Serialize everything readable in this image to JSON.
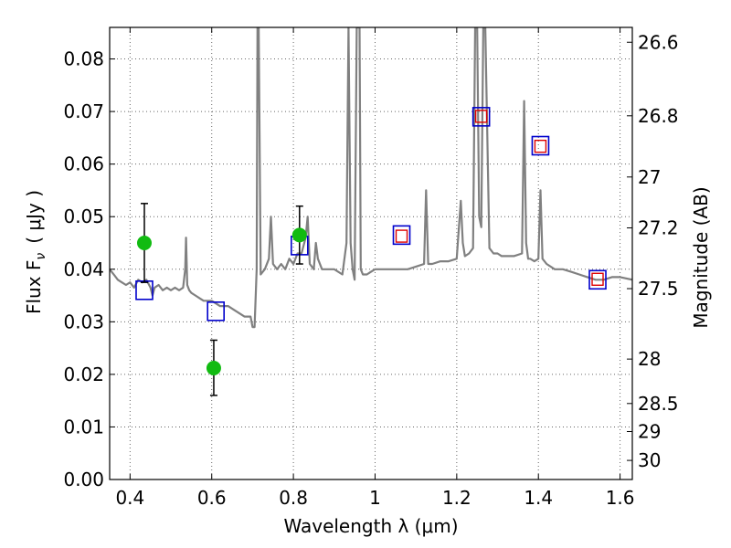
{
  "chart_data": {
    "type": "line",
    "xlabel": "Wavelength  λ (μm)",
    "ylabel": "Flux  F",
    "ylabel_sub": "ν",
    "ylabel_unit": "( μJy )",
    "y2label": "Magnitude (AB)",
    "xlim": [
      0.35,
      1.63
    ],
    "ylim": [
      0.0,
      0.086
    ],
    "grid": true,
    "x_ticks": [
      0.4,
      0.6,
      0.8,
      1.0,
      1.2,
      1.4,
      1.6
    ],
    "x_tick_labels": [
      "0.4",
      "0.6",
      "0.8",
      "1",
      "1.2",
      "1.4",
      "1.6"
    ],
    "y_ticks": [
      0.0,
      0.01,
      0.02,
      0.03,
      0.04,
      0.05,
      0.06,
      0.07,
      0.08
    ],
    "y_tick_labels": [
      "0.00",
      "0.01",
      "0.02",
      "0.03",
      "0.04",
      "0.05",
      "0.06",
      "0.07",
      "0.08"
    ],
    "mag_ticks": [
      26.6,
      26.8,
      27.0,
      27.2,
      27.5,
      28.0,
      28.5,
      29.0,
      30.0
    ],
    "mag_tick_labels": [
      "26.6",
      "26.8",
      "27",
      "27.2",
      "27.5",
      "28",
      "28.5",
      "29",
      "30"
    ],
    "colors": {
      "model": "#808080",
      "blue_squares": "#0000cc",
      "red_squares": "#dd0000",
      "observed": "#11bb11",
      "errorbar": "#000000"
    },
    "series": [
      {
        "kind": "model_spectrum",
        "x": [
          0.35,
          0.36,
          0.37,
          0.38,
          0.39,
          0.4,
          0.41,
          0.42,
          0.43,
          0.44,
          0.45,
          0.455,
          0.46,
          0.47,
          0.48,
          0.49,
          0.5,
          0.51,
          0.52,
          0.53,
          0.535,
          0.537,
          0.54,
          0.545,
          0.55,
          0.56,
          0.57,
          0.58,
          0.6,
          0.62,
          0.64,
          0.66,
          0.68,
          0.695,
          0.7,
          0.705,
          0.71,
          0.712,
          0.715,
          0.72,
          0.73,
          0.74,
          0.745,
          0.75,
          0.76,
          0.77,
          0.78,
          0.79,
          0.8,
          0.81,
          0.82,
          0.83,
          0.835,
          0.84,
          0.85,
          0.855,
          0.86,
          0.87,
          0.88,
          0.9,
          0.92,
          0.93,
          0.935,
          0.94,
          0.945,
          0.95,
          0.955,
          0.96,
          0.962,
          0.965,
          0.97,
          0.98,
          0.99,
          1.0,
          1.02,
          1.04,
          1.06,
          1.08,
          1.1,
          1.12,
          1.125,
          1.13,
          1.14,
          1.16,
          1.18,
          1.2,
          1.21,
          1.215,
          1.22,
          1.23,
          1.24,
          1.245,
          1.25,
          1.255,
          1.26,
          1.265,
          1.27,
          1.28,
          1.29,
          1.3,
          1.31,
          1.32,
          1.34,
          1.36,
          1.365,
          1.37,
          1.375,
          1.38,
          1.39,
          1.4,
          1.405,
          1.41,
          1.42,
          1.44,
          1.46,
          1.48,
          1.5,
          1.52,
          1.54,
          1.56,
          1.58,
          1.6,
          1.63
        ],
        "y": [
          0.04,
          0.039,
          0.038,
          0.0375,
          0.037,
          0.0375,
          0.0365,
          0.038,
          0.0375,
          0.038,
          0.0365,
          0.035,
          0.0365,
          0.037,
          0.036,
          0.0365,
          0.036,
          0.0365,
          0.036,
          0.0365,
          0.04,
          0.046,
          0.037,
          0.036,
          0.0355,
          0.035,
          0.0345,
          0.034,
          0.034,
          0.033,
          0.033,
          0.032,
          0.031,
          0.031,
          0.029,
          0.029,
          0.04,
          0.086,
          0.086,
          0.039,
          0.04,
          0.042,
          0.05,
          0.041,
          0.04,
          0.041,
          0.04,
          0.042,
          0.041,
          0.043,
          0.043,
          0.046,
          0.05,
          0.041,
          0.04,
          0.045,
          0.042,
          0.04,
          0.04,
          0.04,
          0.039,
          0.045,
          0.086,
          0.045,
          0.04,
          0.038,
          0.086,
          0.086,
          0.086,
          0.04,
          0.039,
          0.039,
          0.0395,
          0.04,
          0.04,
          0.04,
          0.04,
          0.04,
          0.0405,
          0.041,
          0.055,
          0.041,
          0.041,
          0.0415,
          0.0415,
          0.042,
          0.053,
          0.045,
          0.0425,
          0.043,
          0.044,
          0.086,
          0.086,
          0.05,
          0.048,
          0.086,
          0.086,
          0.044,
          0.043,
          0.043,
          0.0425,
          0.0425,
          0.0425,
          0.043,
          0.072,
          0.045,
          0.042,
          0.042,
          0.0415,
          0.042,
          0.055,
          0.042,
          0.041,
          0.04,
          0.04,
          0.0395,
          0.039,
          0.0385,
          0.038,
          0.038,
          0.0385,
          0.0385,
          0.038
        ]
      },
      {
        "kind": "open_squares_blue",
        "x": [
          0.435,
          0.61,
          0.815,
          1.065,
          1.26,
          1.405,
          1.545
        ],
        "y": [
          0.036,
          0.032,
          0.0445,
          0.0465,
          0.069,
          0.0635,
          0.038
        ]
      },
      {
        "kind": "open_squares_red",
        "x": [
          1.065,
          1.26,
          1.405,
          1.545
        ],
        "y": [
          0.0462,
          0.069,
          0.0633,
          0.038
        ]
      },
      {
        "kind": "observed_points",
        "x": [
          0.435,
          0.605,
          0.815
        ],
        "y": [
          0.045,
          0.0212,
          0.0465
        ],
        "y_lower": [
          0.0375,
          0.016,
          0.041
        ],
        "y_upper": [
          0.0525,
          0.0265,
          0.052
        ]
      }
    ]
  }
}
